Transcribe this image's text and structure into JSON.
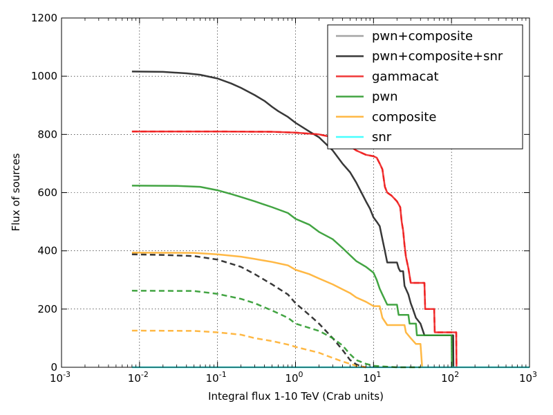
{
  "chart_data": {
    "type": "line",
    "title": "",
    "xlabel": "Integral flux 1-10 TeV (Crab units)",
    "ylabel": "Flux of sources",
    "xscale": "log",
    "xlim": [
      0.001,
      1000
    ],
    "ylim": [
      0,
      1200
    ],
    "grid": true,
    "legend_position": "top-right",
    "x_ticks": [
      {
        "value": 0.001,
        "base": "10",
        "exp": "-3"
      },
      {
        "value": 0.01,
        "base": "10",
        "exp": "-2"
      },
      {
        "value": 0.1,
        "base": "10",
        "exp": "-1"
      },
      {
        "value": 1,
        "base": "10",
        "exp": "0"
      },
      {
        "value": 10,
        "base": "10",
        "exp": "1"
      },
      {
        "value": 100,
        "base": "10",
        "exp": "2"
      },
      {
        "value": 1000,
        "base": "10",
        "exp": "3"
      }
    ],
    "y_ticks": [
      {
        "value": 0,
        "label": "0"
      },
      {
        "value": 200,
        "label": "200"
      },
      {
        "value": 400,
        "label": "400"
      },
      {
        "value": 600,
        "label": "600"
      },
      {
        "value": 800,
        "label": "800"
      },
      {
        "value": 1000,
        "label": "1000"
      },
      {
        "value": 1200,
        "label": "1200"
      }
    ],
    "legend": [
      {
        "name": "pwn+composite",
        "color": "#999999"
      },
      {
        "name": "pwn+composite+snr",
        "color": "#222222"
      },
      {
        "name": "gammacat",
        "color": "#ee2222"
      },
      {
        "name": "pwn",
        "color": "#2e9a2e"
      },
      {
        "name": "composite",
        "color": "#ffb030"
      },
      {
        "name": "snr",
        "color": "#33ffff"
      }
    ],
    "series": [
      {
        "name": "gammacat",
        "color": "#ee2222",
        "style": "solid",
        "points": [
          [
            0.008,
            810
          ],
          [
            0.1,
            810
          ],
          [
            0.5,
            809
          ],
          [
            1,
            806
          ],
          [
            2,
            800
          ],
          [
            3,
            790
          ],
          [
            4,
            780
          ],
          [
            5,
            760
          ],
          [
            6,
            745
          ],
          [
            8,
            730
          ],
          [
            10,
            725
          ],
          [
            11,
            720
          ],
          [
            12,
            700
          ],
          [
            13,
            680
          ],
          [
            14,
            620
          ],
          [
            15,
            600
          ],
          [
            17,
            590
          ],
          [
            20,
            570
          ],
          [
            22,
            550
          ],
          [
            23,
            500
          ],
          [
            24,
            470
          ],
          [
            25,
            420
          ],
          [
            26,
            380
          ],
          [
            28,
            340
          ],
          [
            30,
            290
          ],
          [
            35,
            290
          ],
          [
            45,
            290
          ],
          [
            46,
            200
          ],
          [
            60,
            200
          ],
          [
            61,
            120
          ],
          [
            80,
            120
          ],
          [
            115,
            120
          ],
          [
            116,
            0
          ]
        ]
      },
      {
        "name": "pwn+composite+snr",
        "color": "#222222",
        "style": "solid",
        "points": [
          [
            0.008,
            1016
          ],
          [
            0.02,
            1015
          ],
          [
            0.04,
            1010
          ],
          [
            0.06,
            1005
          ],
          [
            0.1,
            992
          ],
          [
            0.15,
            975
          ],
          [
            0.2,
            960
          ],
          [
            0.3,
            935
          ],
          [
            0.4,
            915
          ],
          [
            0.5,
            895
          ],
          [
            0.6,
            880
          ],
          [
            0.8,
            860
          ],
          [
            1,
            840
          ],
          [
            1.5,
            810
          ],
          [
            2,
            790
          ],
          [
            3,
            745
          ],
          [
            4,
            700
          ],
          [
            5,
            670
          ],
          [
            6,
            635
          ],
          [
            7,
            600
          ],
          [
            8,
            570
          ],
          [
            9,
            545
          ],
          [
            10,
            515
          ],
          [
            11,
            500
          ],
          [
            12,
            485
          ],
          [
            13,
            440
          ],
          [
            14,
            400
          ],
          [
            15,
            360
          ],
          [
            20,
            360
          ],
          [
            21,
            340
          ],
          [
            22,
            330
          ],
          [
            24,
            330
          ],
          [
            25,
            280
          ],
          [
            28,
            250
          ],
          [
            30,
            220
          ],
          [
            32,
            200
          ],
          [
            35,
            170
          ],
          [
            40,
            150
          ],
          [
            45,
            110
          ],
          [
            105,
            110
          ],
          [
            106,
            0
          ]
        ]
      },
      {
        "name": "pwn",
        "color": "#2e9a2e",
        "style": "solid",
        "points": [
          [
            0.008,
            624
          ],
          [
            0.03,
            623
          ],
          [
            0.06,
            620
          ],
          [
            0.1,
            608
          ],
          [
            0.15,
            595
          ],
          [
            0.2,
            585
          ],
          [
            0.3,
            570
          ],
          [
            0.5,
            550
          ],
          [
            0.8,
            530
          ],
          [
            1,
            510
          ],
          [
            1.5,
            490
          ],
          [
            2,
            465
          ],
          [
            3,
            440
          ],
          [
            4,
            410
          ],
          [
            5,
            385
          ],
          [
            6,
            365
          ],
          [
            8,
            345
          ],
          [
            10,
            325
          ],
          [
            11,
            300
          ],
          [
            12,
            270
          ],
          [
            13,
            250
          ],
          [
            15,
            215
          ],
          [
            20,
            215
          ],
          [
            21,
            180
          ],
          [
            28,
            180
          ],
          [
            29,
            150
          ],
          [
            35,
            150
          ],
          [
            36,
            110
          ],
          [
            100,
            110
          ],
          [
            101,
            0
          ]
        ]
      },
      {
        "name": "composite",
        "color": "#ffb030",
        "style": "solid",
        "points": [
          [
            0.008,
            394
          ],
          [
            0.05,
            393
          ],
          [
            0.1,
            388
          ],
          [
            0.2,
            380
          ],
          [
            0.3,
            372
          ],
          [
            0.5,
            362
          ],
          [
            0.8,
            350
          ],
          [
            1,
            335
          ],
          [
            1.5,
            320
          ],
          [
            2,
            305
          ],
          [
            3,
            285
          ],
          [
            4,
            268
          ],
          [
            5,
            255
          ],
          [
            6,
            240
          ],
          [
            8,
            225
          ],
          [
            10,
            210
          ],
          [
            12,
            210
          ],
          [
            13,
            170
          ],
          [
            15,
            145
          ],
          [
            25,
            145
          ],
          [
            26,
            120
          ],
          [
            30,
            100
          ],
          [
            35,
            80
          ],
          [
            40,
            80
          ],
          [
            42,
            0
          ]
        ]
      },
      {
        "name": "snr",
        "color": "#33ffff",
        "style": "solid",
        "points": [
          [
            0.008,
            0
          ],
          [
            1000,
            0
          ]
        ]
      },
      {
        "name": "pwn+composite+snr (dashed)",
        "color": "#222222",
        "style": "dashed",
        "points": [
          [
            0.008,
            388
          ],
          [
            0.02,
            386
          ],
          [
            0.05,
            382
          ],
          [
            0.1,
            370
          ],
          [
            0.2,
            345
          ],
          [
            0.3,
            320
          ],
          [
            0.5,
            285
          ],
          [
            0.8,
            250
          ],
          [
            1,
            220
          ],
          [
            1.5,
            180
          ],
          [
            2,
            150
          ],
          [
            3,
            100
          ],
          [
            4,
            60
          ],
          [
            5,
            25
          ],
          [
            6,
            10
          ],
          [
            7,
            3
          ],
          [
            8,
            0
          ]
        ]
      },
      {
        "name": "pwn (dashed)",
        "color": "#2e9a2e",
        "style": "dashed",
        "points": [
          [
            0.008,
            263
          ],
          [
            0.05,
            262
          ],
          [
            0.1,
            252
          ],
          [
            0.2,
            235
          ],
          [
            0.3,
            220
          ],
          [
            0.5,
            195
          ],
          [
            0.8,
            170
          ],
          [
            1,
            150
          ],
          [
            2,
            125
          ],
          [
            3,
            100
          ],
          [
            4,
            75
          ],
          [
            5,
            45
          ],
          [
            6,
            25
          ],
          [
            8,
            12
          ],
          [
            10,
            5
          ],
          [
            20,
            0
          ],
          [
            40,
            0
          ]
        ]
      },
      {
        "name": "composite (dashed)",
        "color": "#ffb030",
        "style": "dashed",
        "points": [
          [
            0.008,
            126
          ],
          [
            0.05,
            125
          ],
          [
            0.1,
            120
          ],
          [
            0.2,
            112
          ],
          [
            0.3,
            100
          ],
          [
            0.5,
            90
          ],
          [
            0.8,
            78
          ],
          [
            1,
            70
          ],
          [
            2,
            50
          ],
          [
            3,
            32
          ],
          [
            4,
            20
          ],
          [
            5,
            12
          ],
          [
            6,
            5
          ],
          [
            8,
            0
          ]
        ]
      },
      {
        "name": "gammacat (dashed)",
        "color": "#ee2222",
        "style": "dashed",
        "points": [
          [
            0.008,
            810
          ],
          [
            0.1,
            810
          ],
          [
            0.5,
            809
          ],
          [
            1,
            806
          ],
          [
            2,
            800
          ],
          [
            3,
            790
          ],
          [
            4,
            780
          ],
          [
            5,
            760
          ],
          [
            6,
            745
          ],
          [
            8,
            730
          ],
          [
            10,
            725
          ],
          [
            11,
            720
          ],
          [
            12,
            700
          ],
          [
            13,
            680
          ],
          [
            14,
            620
          ],
          [
            15,
            600
          ],
          [
            17,
            590
          ],
          [
            20,
            570
          ],
          [
            22,
            550
          ],
          [
            23,
            500
          ],
          [
            24,
            470
          ],
          [
            25,
            420
          ],
          [
            26,
            380
          ],
          [
            28,
            340
          ],
          [
            30,
            290
          ],
          [
            35,
            290
          ],
          [
            45,
            290
          ],
          [
            46,
            200
          ],
          [
            60,
            200
          ],
          [
            61,
            120
          ],
          [
            80,
            120
          ],
          [
            115,
            120
          ],
          [
            116,
            0
          ]
        ]
      }
    ]
  }
}
